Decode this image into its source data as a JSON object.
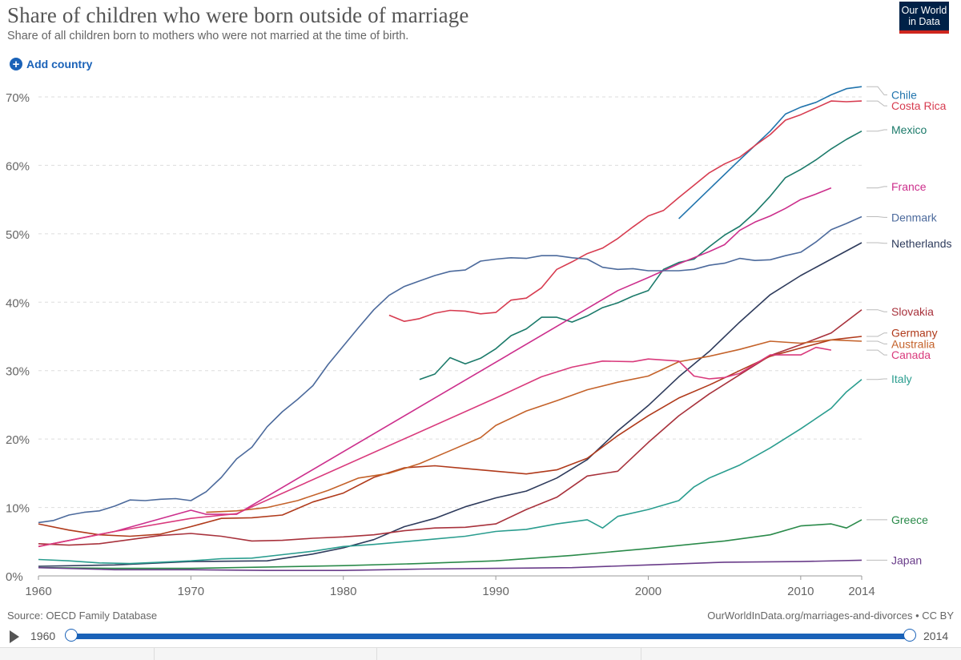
{
  "header": {
    "title": "Share of children who were born outside of marriage",
    "subtitle": "Share of all children born to mothers who were not married at the time of birth.",
    "logo_lines": [
      "Our World",
      "in Data"
    ]
  },
  "controls": {
    "add_country_label": "Add country",
    "add_icon": "plus-circle-icon"
  },
  "footer": {
    "source": "Source: OECD Family Database",
    "attribution": "OurWorldInData.org/marriages-and-divorces • CC BY"
  },
  "timeline": {
    "start_label": "1960",
    "end_label": "2014",
    "play_icon": "play-icon",
    "range": [
      1960,
      2014
    ]
  },
  "chart_data": {
    "type": "line",
    "title": "Share of children who were born outside of marriage",
    "xlim": [
      1960,
      2014
    ],
    "ylim": [
      0,
      70
    ],
    "x_ticks": [
      {
        "value": 1960,
        "label": "1960"
      },
      {
        "value": 1970,
        "label": "1970"
      },
      {
        "value": 1980,
        "label": "1980"
      },
      {
        "value": 1990,
        "label": "1990"
      },
      {
        "value": 2000,
        "label": "2000"
      },
      {
        "value": 2010,
        "label": "2010"
      },
      {
        "value": 2014,
        "label": "2014"
      }
    ],
    "y_ticks": [
      {
        "value": 0,
        "label": "0%"
      },
      {
        "value": 10,
        "label": "10%"
      },
      {
        "value": 20,
        "label": "20%"
      },
      {
        "value": 30,
        "label": "30%"
      },
      {
        "value": 40,
        "label": "40%"
      },
      {
        "value": 50,
        "label": "50%"
      },
      {
        "value": 60,
        "label": "60%"
      },
      {
        "value": 70,
        "label": "70%"
      }
    ],
    "grid": "horizontal-dashed",
    "legend": "right-end-labels",
    "series": [
      {
        "name": "Chile",
        "color": "#2174ad",
        "x": [
          2002,
          2004,
          2006,
          2008,
          2009,
          2010,
          2011,
          2012,
          2013,
          2014
        ],
        "y": [
          52.2,
          56.5,
          60.8,
          65.0,
          67.5,
          68.5,
          69.2,
          70.3,
          71.2,
          71.5
        ]
      },
      {
        "name": "Costa Rica",
        "color": "#d73c50",
        "x": [
          1983,
          1984,
          1985,
          1986,
          1987,
          1988,
          1989,
          1990,
          1991,
          1992,
          1993,
          1994,
          1995,
          1996,
          1997,
          1998,
          1999,
          2000,
          2001,
          2002,
          2003,
          2004,
          2005,
          2006,
          2007,
          2008,
          2009,
          2010,
          2011,
          2012,
          2013,
          2014
        ],
        "y": [
          38.1,
          37.2,
          37.6,
          38.4,
          38.8,
          38.7,
          38.3,
          38.5,
          40.3,
          40.6,
          42.1,
          44.8,
          45.9,
          47.1,
          47.9,
          49.3,
          51.0,
          52.6,
          53.4,
          55.3,
          57.1,
          58.9,
          60.2,
          61.2,
          62.9,
          64.5,
          66.6,
          67.4,
          68.4,
          69.4,
          69.3,
          69.4
        ]
      },
      {
        "name": "Mexico",
        "color": "#1b7a6a",
        "x": [
          1985,
          1986,
          1987,
          1988,
          1989,
          1990,
          1991,
          1992,
          1993,
          1994,
          1995,
          1996,
          1997,
          1998,
          1999,
          2000,
          2001,
          2002,
          2003,
          2004,
          2005,
          2006,
          2007,
          2008,
          2009,
          2010,
          2011,
          2012,
          2013,
          2014
        ],
        "y": [
          28.7,
          29.5,
          31.9,
          31.0,
          31.8,
          33.2,
          35.1,
          36.1,
          37.8,
          37.8,
          37.1,
          38.0,
          39.2,
          39.9,
          40.9,
          41.7,
          44.8,
          45.8,
          46.3,
          48.1,
          49.8,
          51.1,
          53.1,
          55.5,
          58.2,
          59.4,
          60.8,
          62.4,
          63.8,
          65.0
        ]
      },
      {
        "name": "France",
        "color": "#cc2f8c",
        "x": [
          1960,
          1965,
          1970,
          1971,
          1972,
          1973,
          1998,
          2000,
          2002,
          2004,
          2005,
          2006,
          2007,
          2008,
          2009,
          2010,
          2011,
          2012
        ],
        "y": [
          4.3,
          6.5,
          9.6,
          9.0,
          9.0,
          9.0,
          41.7,
          43.6,
          45.6,
          47.4,
          48.4,
          50.5,
          51.7,
          52.6,
          53.7,
          55.0,
          55.8,
          56.7
        ]
      },
      {
        "name": "Denmark",
        "color": "#4c6a9c",
        "x": [
          1960,
          1961,
          1962,
          1963,
          1964,
          1965,
          1966,
          1967,
          1968,
          1969,
          1970,
          1971,
          1972,
          1973,
          1974,
          1975,
          1976,
          1977,
          1978,
          1979,
          1980,
          1981,
          1982,
          1983,
          1984,
          1985,
          1986,
          1987,
          1988,
          1989,
          1990,
          1991,
          1992,
          1993,
          1994,
          1995,
          1996,
          1997,
          1998,
          1999,
          2000,
          2001,
          2002,
          2003,
          2004,
          2005,
          2006,
          2007,
          2008,
          2009,
          2010,
          2011,
          2012,
          2013,
          2014
        ],
        "y": [
          7.8,
          8.1,
          8.9,
          9.3,
          9.5,
          10.2,
          11.1,
          11.0,
          11.2,
          11.3,
          11.0,
          12.3,
          14.4,
          17.1,
          18.8,
          21.8,
          24.0,
          25.8,
          27.8,
          30.9,
          33.6,
          36.3,
          38.9,
          41.0,
          42.3,
          43.1,
          43.9,
          44.5,
          44.7,
          46.0,
          46.3,
          46.5,
          46.4,
          46.8,
          46.8,
          46.5,
          46.3,
          45.1,
          44.8,
          44.9,
          44.6,
          44.6,
          44.6,
          44.8,
          45.4,
          45.7,
          46.4,
          46.1,
          46.2,
          46.8,
          47.3,
          48.8,
          50.6,
          51.5,
          52.5
        ]
      },
      {
        "name": "Netherlands",
        "color": "#2e3b5c",
        "x": [
          1960,
          1965,
          1970,
          1975,
          1978,
          1980,
          1982,
          1984,
          1986,
          1988,
          1990,
          1992,
          1994,
          1996,
          1998,
          2000,
          2002,
          2004,
          2006,
          2008,
          2010,
          2012,
          2014
        ],
        "y": [
          1.4,
          1.6,
          2.1,
          2.2,
          3.2,
          4.1,
          5.3,
          7.2,
          8.4,
          10.1,
          11.4,
          12.4,
          14.3,
          17.0,
          21.2,
          24.9,
          29.1,
          32.8,
          37.1,
          41.1,
          43.9,
          46.3,
          48.7
        ]
      },
      {
        "name": "Slovakia",
        "color": "#a8323c",
        "x": [
          1960,
          1962,
          1964,
          1966,
          1968,
          1970,
          1972,
          1974,
          1976,
          1978,
          1980,
          1982,
          1984,
          1986,
          1988,
          1990,
          1992,
          1994,
          1996,
          1998,
          2000,
          2002,
          2004,
          2006,
          2008,
          2010,
          2012,
          2014
        ],
        "y": [
          4.7,
          4.5,
          4.7,
          5.3,
          5.9,
          6.2,
          5.8,
          5.1,
          5.2,
          5.5,
          5.7,
          6.0,
          6.6,
          7.0,
          7.1,
          7.6,
          9.7,
          11.5,
          14.6,
          15.3,
          19.5,
          23.4,
          26.6,
          29.4,
          32.2,
          33.8,
          35.5,
          38.9
        ]
      },
      {
        "name": "Germany",
        "color": "#b03a1b",
        "x": [
          1960,
          1962,
          1964,
          1966,
          1968,
          1970,
          1972,
          1974,
          1976,
          1978,
          1980,
          1982,
          1984,
          1986,
          1988,
          1990,
          1992,
          1994,
          1996,
          1998,
          2000,
          2002,
          2004,
          2006,
          2008,
          2010,
          2012,
          2014
        ],
        "y": [
          7.6,
          6.7,
          6.0,
          5.8,
          6.1,
          7.2,
          8.4,
          8.5,
          8.9,
          10.8,
          12.1,
          14.4,
          15.8,
          16.1,
          15.7,
          15.3,
          14.9,
          15.5,
          17.2,
          20.5,
          23.4,
          26.0,
          27.9,
          30.0,
          32.1,
          33.3,
          34.5,
          35.0
        ]
      },
      {
        "name": "Australia",
        "color": "#c4622a",
        "x": [
          1971,
          1973,
          1975,
          1977,
          1979,
          1981,
          1983,
          1985,
          1987,
          1989,
          1990,
          1992,
          1994,
          1996,
          1998,
          2000,
          2002,
          2004,
          2006,
          2008,
          2010,
          2012,
          2014
        ],
        "y": [
          9.3,
          9.5,
          10.0,
          11.0,
          12.5,
          14.3,
          15.0,
          16.4,
          18.3,
          20.2,
          22.0,
          24.1,
          25.6,
          27.2,
          28.3,
          29.2,
          31.3,
          32.1,
          33.1,
          34.3,
          34.0,
          34.5,
          34.3
        ]
      },
      {
        "name": "Canada",
        "color": "#d93a7c",
        "x": [
          1960,
          1965,
          1970,
          1973,
          1990,
          1993,
          1995,
          1997,
          1999,
          2000,
          2002,
          2003,
          2004,
          2005,
          2006,
          2008,
          2010,
          2011,
          2012
        ],
        "y": [
          4.3,
          6.5,
          8.4,
          9.1,
          26.0,
          29.1,
          30.5,
          31.4,
          31.3,
          31.7,
          31.4,
          29.2,
          28.8,
          29.0,
          29.6,
          32.3,
          32.3,
          33.4,
          33.0
        ]
      },
      {
        "name": "Italy",
        "color": "#2a9d8f",
        "x": [
          1960,
          1962,
          1964,
          1966,
          1968,
          1970,
          1972,
          1974,
          1976,
          1978,
          1980,
          1982,
          1984,
          1986,
          1988,
          1990,
          1992,
          1994,
          1996,
          1997,
          1998,
          2000,
          2002,
          2003,
          2004,
          2006,
          2008,
          2010,
          2012,
          2013,
          2014
        ],
        "y": [
          2.4,
          2.2,
          1.9,
          1.8,
          2.0,
          2.2,
          2.5,
          2.6,
          3.1,
          3.6,
          4.3,
          4.6,
          5.0,
          5.4,
          5.8,
          6.5,
          6.8,
          7.6,
          8.2,
          7.0,
          8.7,
          9.7,
          11.0,
          13.0,
          14.3,
          16.2,
          18.7,
          21.5,
          24.5,
          26.9,
          28.7
        ]
      },
      {
        "name": "Greece",
        "color": "#2a8a4a",
        "x": [
          1960,
          1965,
          1970,
          1975,
          1980,
          1985,
          1990,
          1995,
          2000,
          2005,
          2008,
          2010,
          2012,
          2013,
          2014
        ],
        "y": [
          1.2,
          1.1,
          1.1,
          1.3,
          1.5,
          1.8,
          2.2,
          3.0,
          4.0,
          5.1,
          6.0,
          7.3,
          7.6,
          7.0,
          8.2
        ]
      },
      {
        "name": "Japan",
        "color": "#6a3d8a",
        "x": [
          1960,
          1965,
          1970,
          1975,
          1980,
          1985,
          1990,
          1995,
          2000,
          2005,
          2010,
          2014
        ],
        "y": [
          1.2,
          0.9,
          0.9,
          0.8,
          0.8,
          1.0,
          1.1,
          1.2,
          1.6,
          2.0,
          2.1,
          2.3
        ]
      }
    ],
    "end_labels": [
      {
        "name": "Chile",
        "color": "#2174ad",
        "label_at": 70.3
      },
      {
        "name": "Costa Rica",
        "color": "#d73c50",
        "label_at": 68.7
      },
      {
        "name": "Mexico",
        "color": "#1b7a6a",
        "label_at": 65.2
      },
      {
        "name": "France",
        "color": "#cc2f8c",
        "label_at": 56.9
      },
      {
        "name": "Denmark",
        "color": "#4c6a9c",
        "label_at": 52.4
      },
      {
        "name": "Netherlands",
        "color": "#2e3b5c",
        "label_at": 48.6
      },
      {
        "name": "Slovakia",
        "color": "#a8323c",
        "label_at": 38.6
      },
      {
        "name": "Germany",
        "color": "#b03a1b",
        "label_at": 35.5
      },
      {
        "name": "Australia",
        "color": "#c4622a",
        "label_at": 33.9
      },
      {
        "name": "Canada",
        "color": "#d93a7c",
        "label_at": 32.3
      },
      {
        "name": "Italy",
        "color": "#2a9d8f",
        "label_at": 28.8
      },
      {
        "name": "Greece",
        "color": "#2a8a4a",
        "label_at": 8.2
      },
      {
        "name": "Japan",
        "color": "#6a3d8a",
        "label_at": 2.3
      }
    ]
  }
}
